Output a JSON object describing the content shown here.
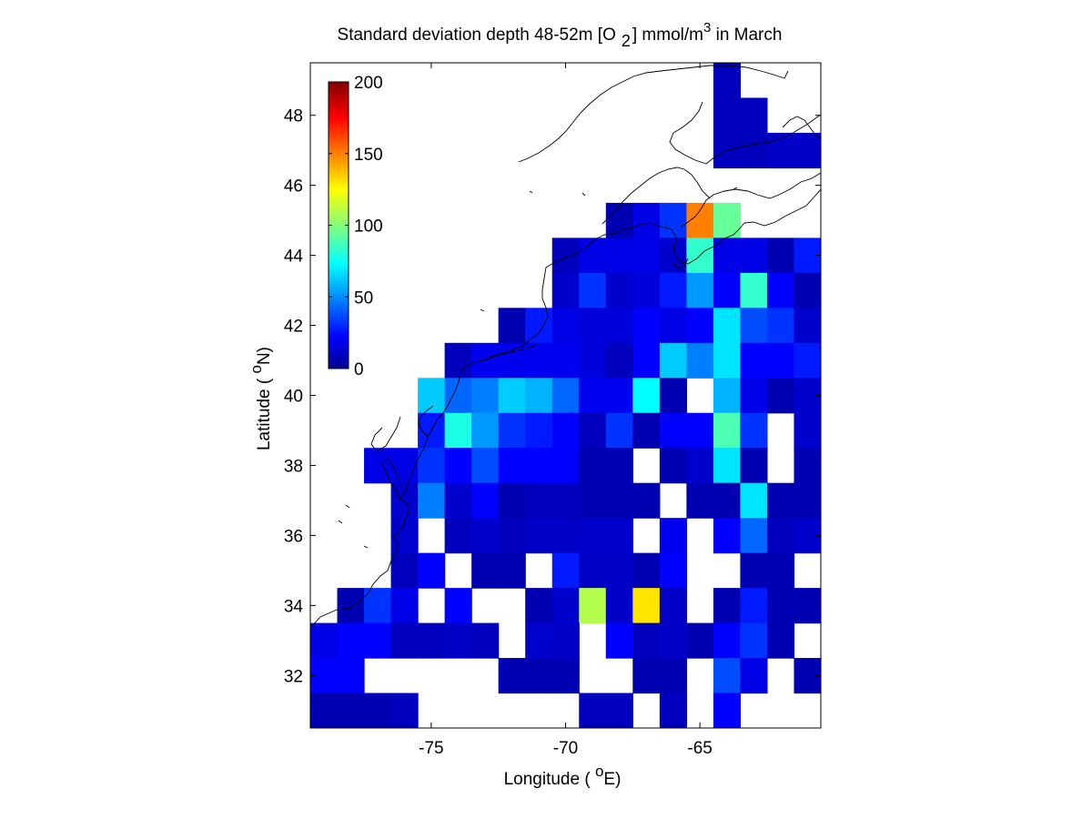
{
  "chart_data": {
    "type": "heatmap",
    "title": {
      "main": "Standard deviation depth 48-52m [O",
      "sub": "2",
      "unit": "] mmol/m",
      "sup": "3",
      "tail": " in March"
    },
    "xlabel": {
      "text": "Longitude ( ",
      "sup": "o",
      "tail": "E)"
    },
    "ylabel": {
      "text": "Latitude ( ",
      "sup": "o",
      "tail": "N)"
    },
    "xlim": [
      -79.5,
      -60.5
    ],
    "ylim": [
      30.5,
      49.5
    ],
    "xticks": [
      -75,
      -70,
      -65
    ],
    "xtick_labels": [
      "-75",
      "-70",
      "-65"
    ],
    "yticks": [
      32,
      34,
      36,
      38,
      40,
      42,
      44,
      46,
      48
    ],
    "ytick_labels": [
      "32",
      "34",
      "36",
      "38",
      "40",
      "42",
      "44",
      "46",
      "48"
    ],
    "colorbar": {
      "min": 0,
      "max": 200,
      "ticks": [
        0,
        50,
        100,
        150,
        200
      ],
      "tick_labels": [
        "0",
        "50",
        "100",
        "150",
        "200"
      ],
      "colormap": "jet",
      "location": "upper-left inside axes"
    },
    "grid": false,
    "cell_size_deg": 1,
    "row_latitudes": [
      49,
      48,
      47,
      46,
      45,
      44,
      43,
      42,
      41,
      40,
      39,
      38,
      37,
      36,
      35,
      34,
      33,
      32,
      31
    ],
    "column_longitudes": [
      -79,
      -78,
      -77,
      -76,
      -75,
      -74,
      -73,
      -72,
      -71,
      -70,
      -69,
      -68,
      -67,
      -66,
      -65,
      -64,
      -63,
      -62,
      -61
    ],
    "values": [
      [
        null,
        null,
        null,
        null,
        null,
        null,
        null,
        null,
        null,
        null,
        null,
        null,
        null,
        null,
        null,
        12,
        null,
        null,
        null
      ],
      [
        null,
        null,
        null,
        null,
        null,
        null,
        null,
        null,
        null,
        null,
        null,
        null,
        null,
        null,
        null,
        12,
        12,
        null,
        null
      ],
      [
        null,
        null,
        null,
        null,
        null,
        null,
        null,
        null,
        null,
        null,
        null,
        null,
        null,
        null,
        null,
        12,
        12,
        14,
        14
      ],
      [
        null,
        null,
        null,
        null,
        null,
        null,
        null,
        null,
        null,
        null,
        null,
        null,
        null,
        null,
        null,
        null,
        null,
        null,
        null
      ],
      [
        null,
        null,
        null,
        null,
        null,
        null,
        null,
        null,
        null,
        null,
        null,
        10,
        20,
        35,
        150,
        95,
        null,
        null,
        null
      ],
      [
        null,
        null,
        null,
        null,
        null,
        null,
        null,
        null,
        null,
        12,
        20,
        20,
        20,
        15,
        85,
        20,
        20,
        10,
        30
      ],
      [
        null,
        null,
        null,
        null,
        null,
        null,
        null,
        null,
        null,
        15,
        35,
        15,
        18,
        30,
        55,
        25,
        85,
        25,
        10
      ],
      [
        null,
        null,
        null,
        null,
        null,
        null,
        null,
        10,
        30,
        20,
        18,
        18,
        25,
        20,
        25,
        70,
        40,
        35,
        15
      ],
      [
        null,
        null,
        null,
        null,
        null,
        12,
        22,
        22,
        22,
        22,
        18,
        12,
        25,
        65,
        50,
        70,
        25,
        25,
        30
      ],
      [
        null,
        null,
        null,
        null,
        65,
        45,
        50,
        65,
        60,
        45,
        22,
        22,
        75,
        10,
        null,
        60,
        20,
        10,
        15
      ],
      [
        null,
        null,
        null,
        null,
        30,
        80,
        55,
        35,
        30,
        25,
        12,
        35,
        10,
        25,
        25,
        90,
        35,
        null,
        15
      ],
      [
        null,
        null,
        20,
        20,
        35,
        25,
        40,
        25,
        25,
        25,
        10,
        10,
        null,
        10,
        15,
        70,
        10,
        null,
        10
      ],
      [
        null,
        null,
        null,
        15,
        50,
        15,
        25,
        10,
        12,
        12,
        10,
        10,
        10,
        null,
        10,
        10,
        70,
        10,
        10
      ],
      [
        null,
        null,
        null,
        15,
        null,
        12,
        15,
        12,
        14,
        14,
        15,
        15,
        null,
        22,
        null,
        25,
        45,
        12,
        15
      ],
      [
        null,
        null,
        null,
        12,
        25,
        null,
        10,
        10,
        null,
        30,
        14,
        14,
        10,
        25,
        null,
        null,
        10,
        10,
        null
      ],
      [
        null,
        10,
        35,
        20,
        null,
        25,
        null,
        null,
        10,
        15,
        110,
        14,
        130,
        14,
        null,
        10,
        30,
        10,
        10
      ],
      [
        20,
        25,
        25,
        12,
        12,
        14,
        12,
        null,
        15,
        14,
        null,
        25,
        12,
        14,
        10,
        25,
        35,
        10,
        null
      ],
      [
        25,
        25,
        null,
        null,
        null,
        null,
        null,
        10,
        10,
        10,
        null,
        null,
        10,
        10,
        null,
        40,
        20,
        null,
        10
      ],
      [
        10,
        10,
        10,
        12,
        null,
        null,
        null,
        null,
        null,
        null,
        12,
        12,
        null,
        12,
        null,
        25,
        null,
        null,
        null
      ]
    ],
    "coastline": "Atlantic coast of North America and Nova Scotia / Newfoundland outline"
  }
}
